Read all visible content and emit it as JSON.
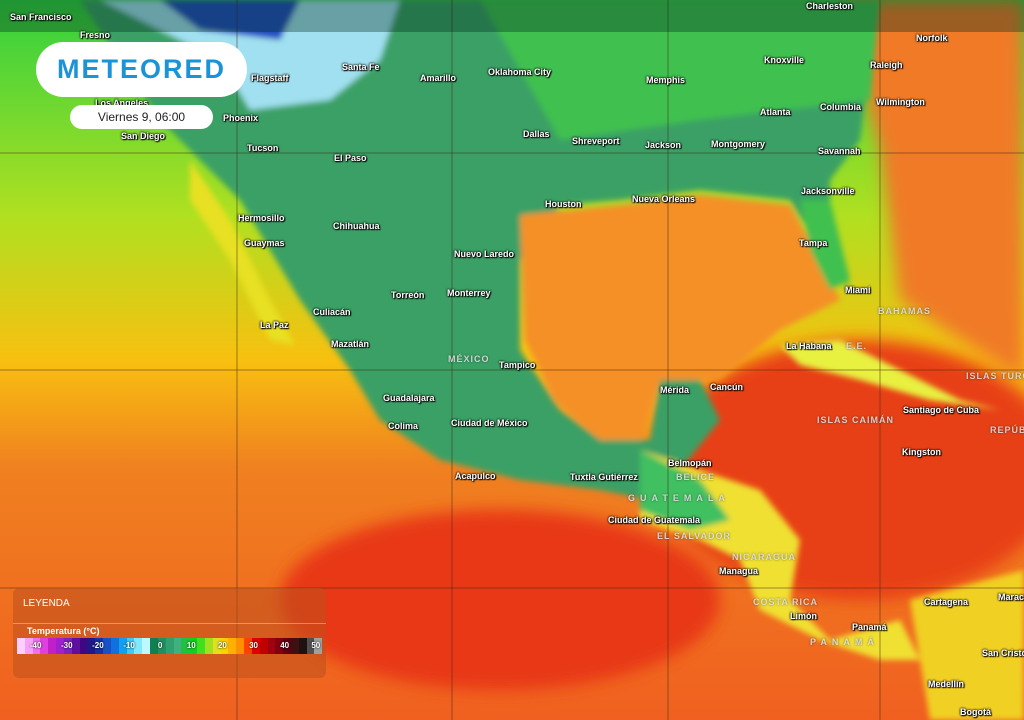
{
  "brand": {
    "logo": "METEORED",
    "date_time": "Viernes 9, 06:00"
  },
  "legend": {
    "title": "LEYENDA",
    "variable": "Temperatura (°C)",
    "ticks": [
      "-40",
      "-30",
      "-20",
      "-10",
      "0",
      "10",
      "20",
      "30",
      "40",
      "50"
    ],
    "colors": [
      "#ffd0ff",
      "#f8a0f8",
      "#f070f0",
      "#e040e0",
      "#c020c8",
      "#a020d0",
      "#8020c0",
      "#6010a0",
      "#400880",
      "#201888",
      "#1830a0",
      "#1850c8",
      "#1070e0",
      "#10a0f0",
      "#40c8f8",
      "#80e8ff",
      "#c0f8ff",
      "#108050",
      "#209060",
      "#30a070",
      "#40b080",
      "#20c040",
      "#10d020",
      "#40e020",
      "#a0e020",
      "#e0e020",
      "#ffd000",
      "#ffb000",
      "#ff9000",
      "#ff4000",
      "#e00000",
      "#c00000",
      "#a00010",
      "#800010",
      "#600010",
      "#401010",
      "#201010",
      "#505050",
      "#a0a0a0"
    ]
  },
  "map": {
    "cities": [
      "San Francisco",
      "Fresno",
      "Los Angeles",
      "Santa Fe",
      "Amarillo",
      "Oklahoma City",
      "Memphis",
      "Knoxville",
      "Norfolk",
      "Raleigh",
      "Wilmington",
      "Charleston",
      "Phoenix",
      "San Diego",
      "Tucson",
      "El Paso",
      "Dallas",
      "Shreveport",
      "Jackson",
      "Montgomery",
      "Atlanta",
      "Columbia",
      "Savannah",
      "Jacksonville",
      "Houston",
      "Nueva Orleans",
      "Tampa",
      "Miami",
      "Hermosillo",
      "Chihuahua",
      "Guaymas",
      "Nuevo Laredo",
      "Torreón",
      "Monterrey",
      "Culiacán",
      "La Paz",
      "Mazatlán",
      "Tampico",
      "La Habana",
      "Mérida",
      "Cancún",
      "Guadalajara",
      "Colima",
      "Ciudad de México",
      "Santiago de Cuba",
      "Kingston",
      "Acapulco",
      "Tuxtla Gutiérrez",
      "Belmopán",
      "Ciudad de Guatemala",
      "Managua",
      "Limón",
      "Panamá",
      "Cartagena",
      "Maraca",
      "San Cristó",
      "Medellín",
      "Bogotá",
      "Flagstaff"
    ],
    "countries": [
      "MÉXICO",
      "BAHAMAS",
      "ISLAS TURCAS",
      "ISLAS CAIMÁN",
      "REPÚBLICA",
      "BELICE",
      "GUATEMALA",
      "EL SALVADOR",
      "NICARAGUA",
      "COSTA RICA",
      "PANAMÁ",
      "E.E."
    ]
  }
}
